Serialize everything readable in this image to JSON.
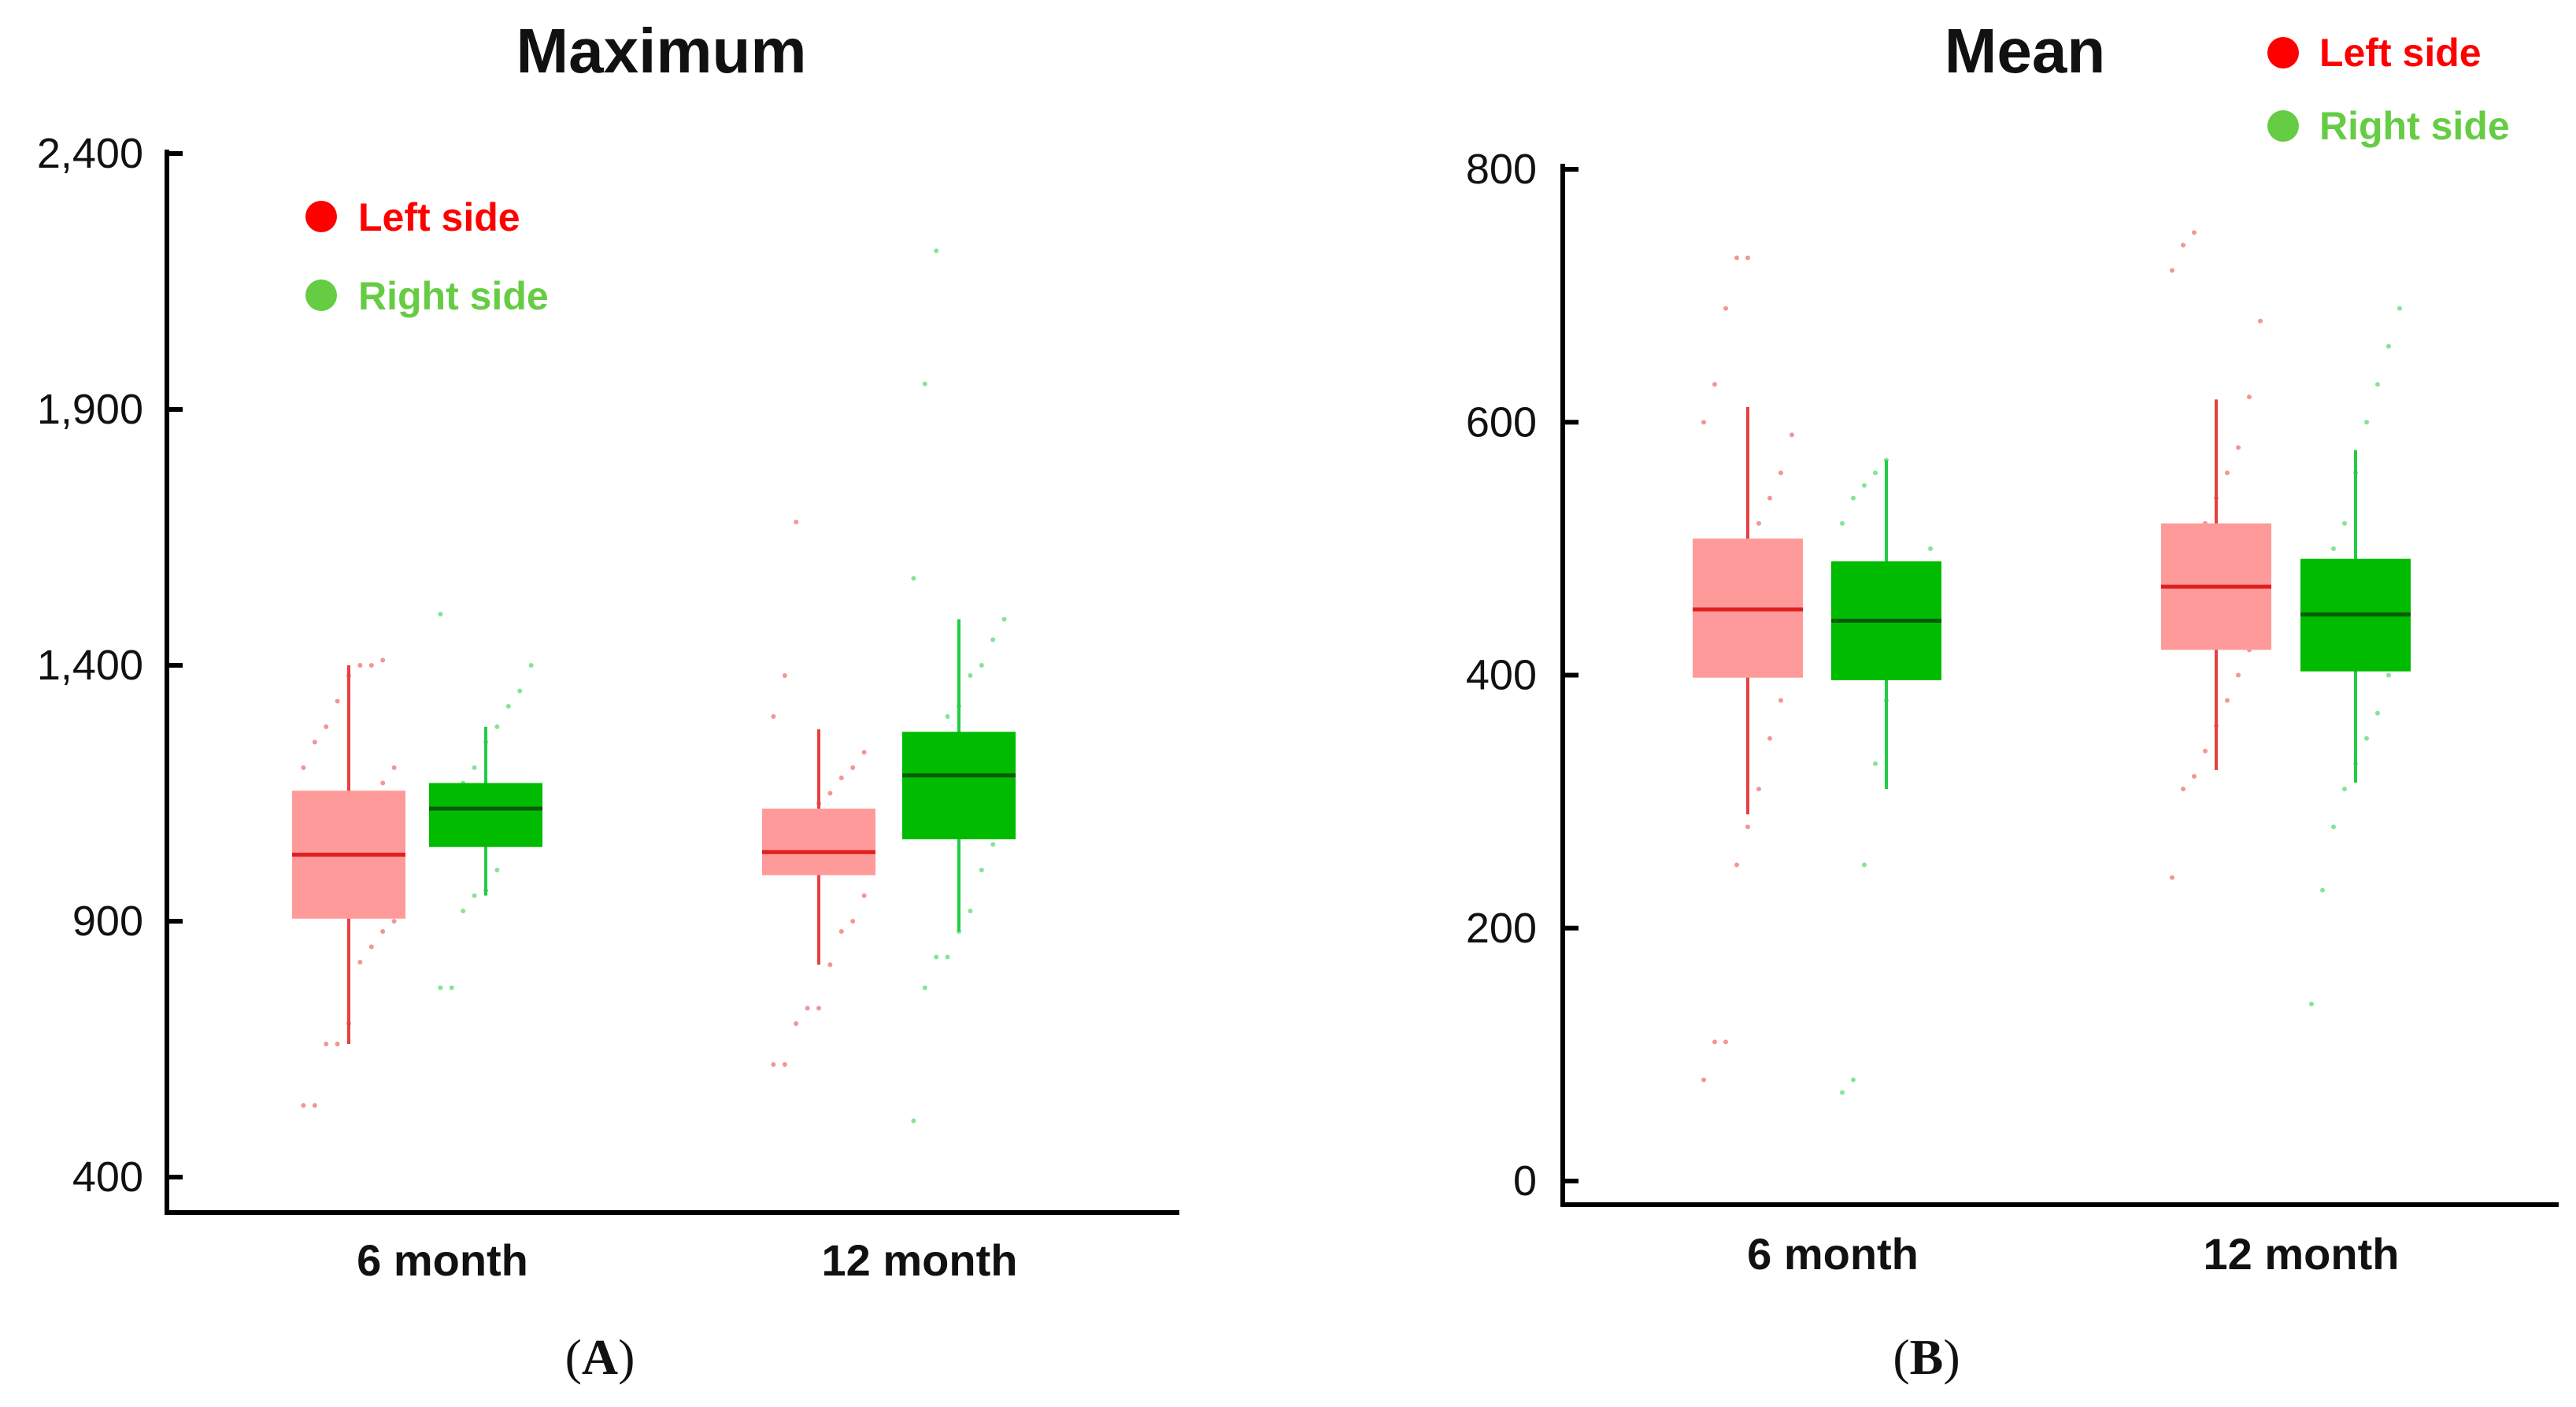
{
  "colors": {
    "left_box": "#ff9a9a",
    "left_line": "#e84040",
    "left_median": "#e02020",
    "right_box": "#00bb00",
    "right_line": "#22cc44",
    "right_median": "#0a5a0a",
    "legend_left": "#ff0000",
    "legend_right": "#66cc44",
    "axis": "#000000"
  },
  "chart_data": [
    {
      "id": "A",
      "type": "box",
      "title": "Maximum",
      "panel_label": "A",
      "categories": [
        "6 month",
        "12 month"
      ],
      "ylim": [
        400,
        2400
      ],
      "y_ticks": [
        400,
        900,
        1400,
        1900,
        2400
      ],
      "y_tick_labels": [
        "400",
        "900",
        "1,400",
        "1,900",
        "2,400"
      ],
      "legend": {
        "placement": "top-left",
        "entries": [
          "Left side",
          "Right side"
        ]
      },
      "series": [
        {
          "name": "Left side",
          "boxes": [
            {
              "whisker_low": 660,
              "q1": 905,
              "median": 1030,
              "q3": 1155,
              "whisker_high": 1400,
              "points": [
                540,
                540,
                660,
                660,
                700,
                820,
                850,
                880,
                900,
                920,
                950,
                1000,
                1050,
                1090,
                1100,
                1150,
                1170,
                1200,
                1200,
                1250,
                1280,
                1330,
                1380,
                1400,
                1400,
                1410
              ]
            },
            {
              "whisker_low": 815,
              "q1": 990,
              "median": 1035,
              "q3": 1120,
              "whisker_high": 1275,
              "points": [
                620,
                620,
                700,
                730,
                730,
                815,
                880,
                900,
                950,
                1000,
                1050,
                1080,
                1100,
                1130,
                1150,
                1180,
                1200,
                1230,
                1300,
                1380,
                1680
              ]
            }
          ]
        },
        {
          "name": "Right side",
          "boxes": [
            {
              "whisker_low": 950,
              "q1": 1045,
              "median": 1120,
              "q3": 1170,
              "whisker_high": 1280,
              "points": [
                770,
                770,
                920,
                950,
                960,
                1000,
                1050,
                1080,
                1100,
                1130,
                1150,
                1170,
                1200,
                1250,
                1280,
                1320,
                1350,
                1400,
                1500
              ]
            },
            {
              "whisker_low": 880,
              "q1": 1060,
              "median": 1185,
              "q3": 1270,
              "whisker_high": 1490,
              "points": [
                510,
                770,
                830,
                830,
                880,
                920,
                1000,
                1050,
                1100,
                1150,
                1200,
                1250,
                1300,
                1320,
                1380,
                1400,
                1450,
                1490,
                1570,
                1950,
                2210
              ]
            }
          ]
        }
      ]
    },
    {
      "id": "B",
      "type": "box",
      "title": "Mean",
      "panel_label": "B",
      "categories": [
        "6 month",
        "12 month"
      ],
      "ylim": [
        0,
        800
      ],
      "y_ticks": [
        0,
        200,
        400,
        600,
        800
      ],
      "y_tick_labels": [
        "0",
        "200",
        "400",
        "600",
        "800"
      ],
      "legend": {
        "placement": "top-right",
        "entries": [
          "Left side",
          "Right side"
        ]
      },
      "series": [
        {
          "name": "Left side",
          "boxes": [
            {
              "whisker_low": 290,
              "q1": 398,
              "median": 452,
              "q3": 508,
              "whisker_high": 612,
              "points": [
                80,
                110,
                110,
                250,
                280,
                310,
                350,
                380,
                400,
                420,
                440,
                460,
                480,
                500,
                520,
                540,
                560,
                590,
                600,
                630,
                690,
                730,
                730
              ]
            },
            {
              "whisker_low": 325,
              "q1": 420,
              "median": 470,
              "q3": 520,
              "whisker_high": 618,
              "points": [
                240,
                310,
                320,
                340,
                360,
                380,
                400,
                420,
                440,
                460,
                480,
                500,
                520,
                540,
                560,
                580,
                620,
                680,
                720,
                740,
                750
              ]
            }
          ]
        },
        {
          "name": "Right side",
          "boxes": [
            {
              "whisker_low": 310,
              "q1": 396,
              "median": 443,
              "q3": 490,
              "whisker_high": 570,
              "points": [
                70,
                80,
                250,
                330,
                380,
                420,
                450,
                480,
                500,
                520,
                540,
                550,
                560,
                570
              ]
            },
            {
              "whisker_low": 315,
              "q1": 403,
              "median": 448,
              "q3": 492,
              "whisker_high": 578,
              "points": [
                140,
                230,
                280,
                310,
                330,
                350,
                370,
                400,
                430,
                460,
                480,
                500,
                520,
                560,
                600,
                630,
                660,
                690
              ]
            }
          ]
        }
      ]
    }
  ]
}
